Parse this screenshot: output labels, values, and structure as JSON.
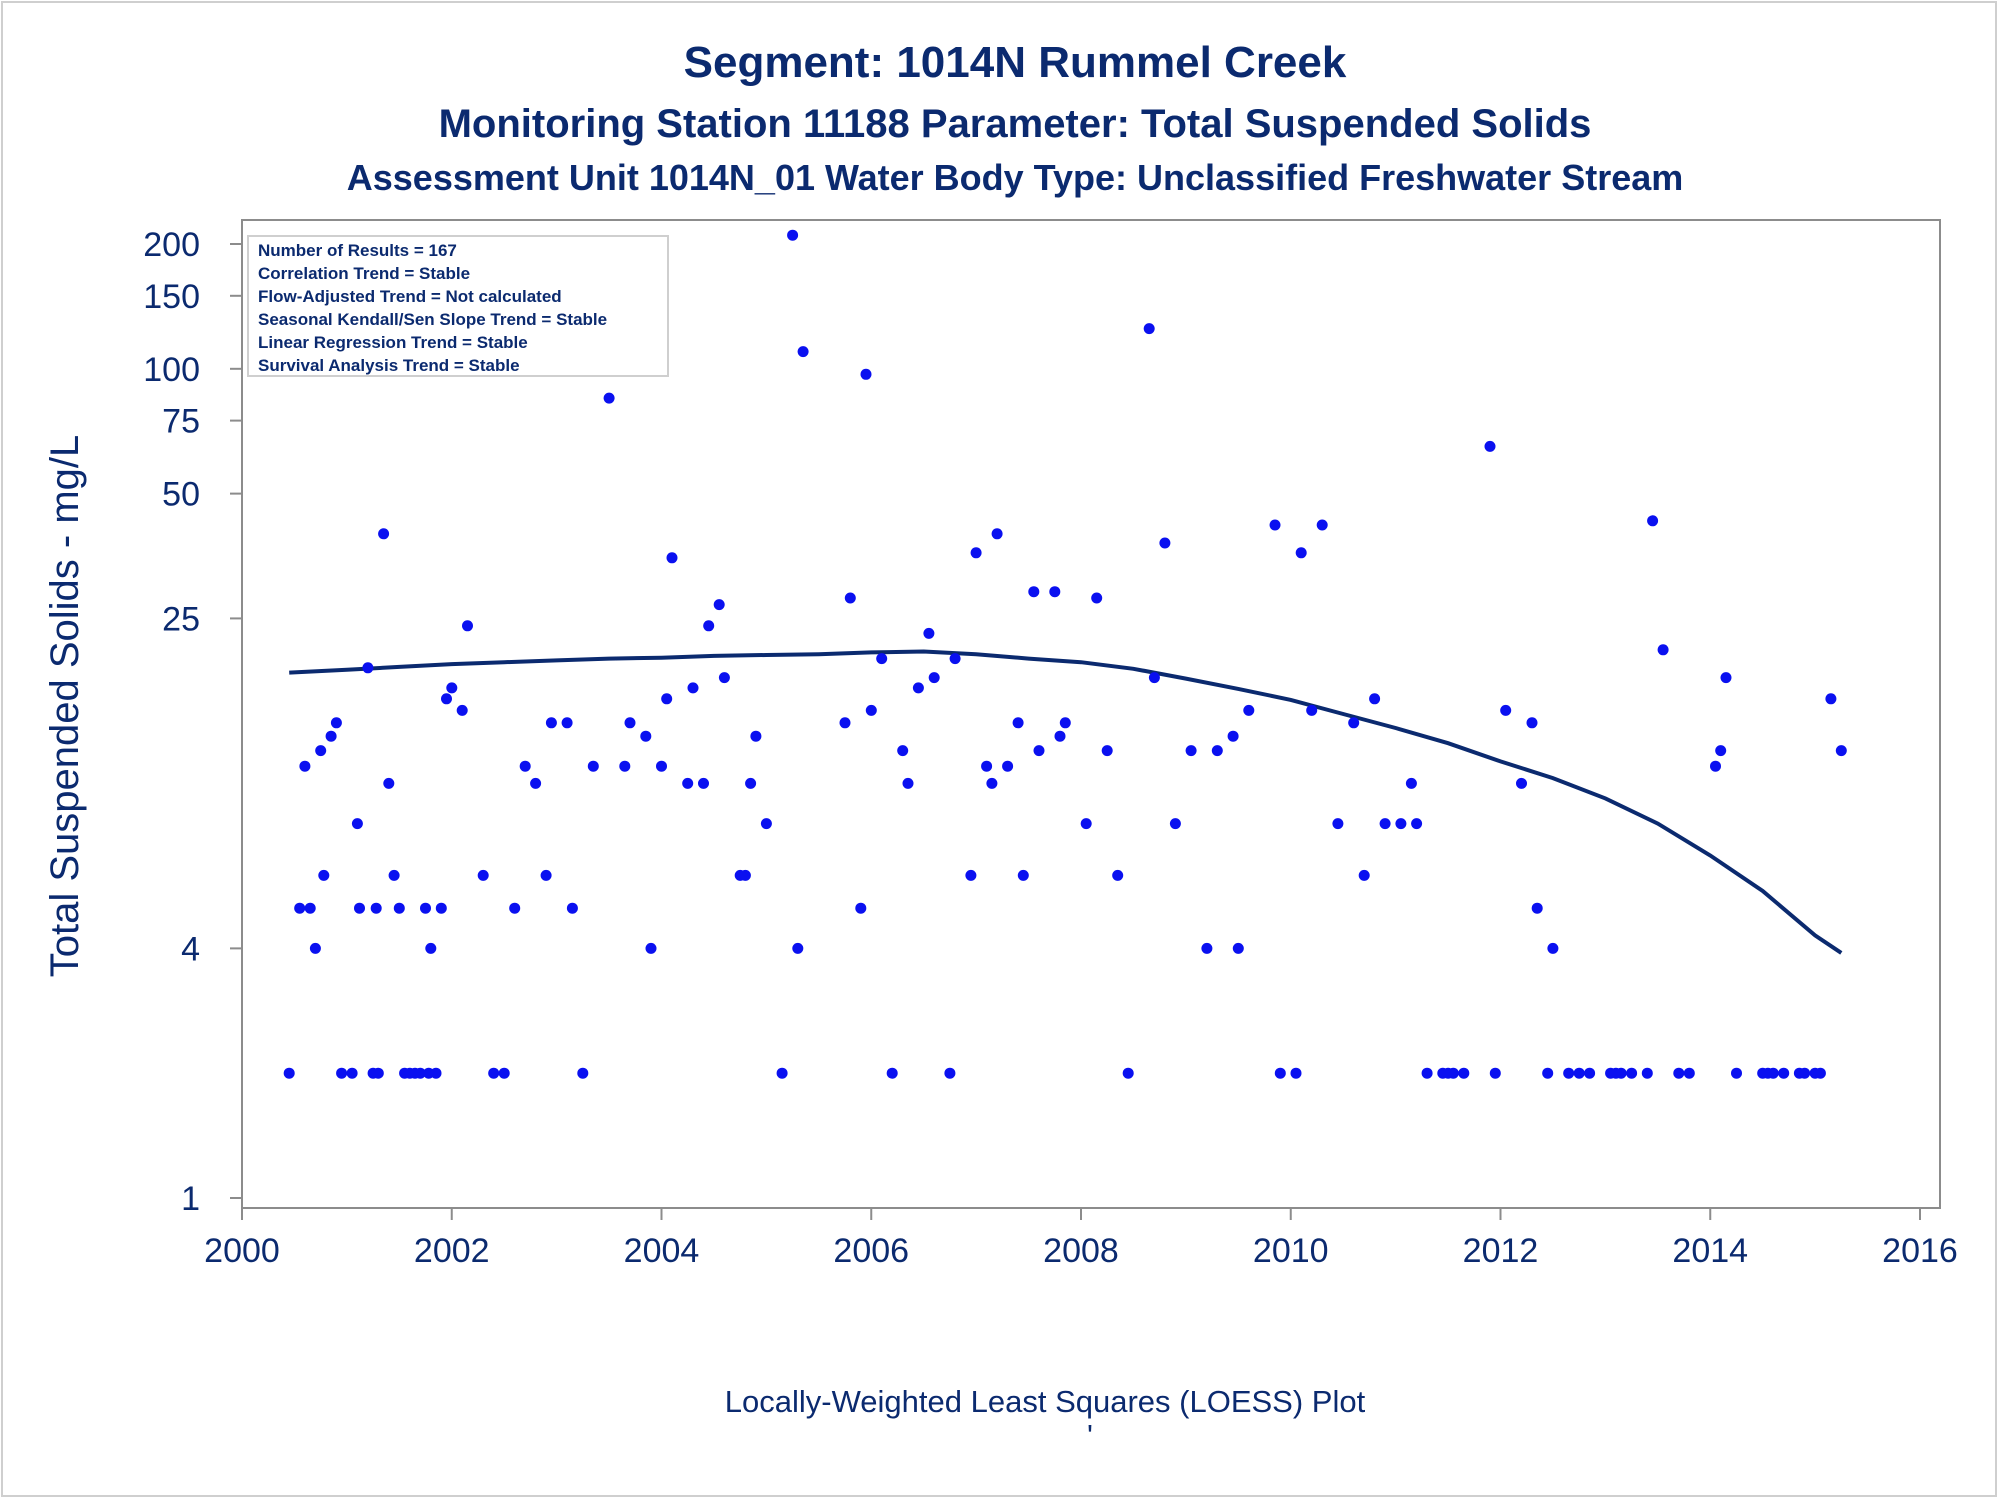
{
  "titles": {
    "line1": "Segment: 1014N  Rummel Creek",
    "line2": "Monitoring Station 11188 Parameter: Total Suspended Solids",
    "line3": "Assessment Unit 1014N_01   Water Body Type: Unclassified Freshwater Stream"
  },
  "legend": {
    "lines": [
      "Number of Results = 167",
      "Correlation Trend = Stable",
      "Flow-Adjusted Trend = Not calculated",
      "Seasonal Kendall/Sen Slope Trend = Stable",
      "Linear Regression Trend = Stable",
      "Survival Analysis Trend = Stable"
    ]
  },
  "footnote": "Locally-Weighted Least Squares (LOESS) Plot",
  "footnote_mark": "'",
  "colors": {
    "points": "#0a10f0",
    "loess": "#0b2a6f",
    "text": "#0b2a6f",
    "axis": "#8c8c8c"
  },
  "chart_data": {
    "type": "scatter",
    "xlabel": "",
    "ylabel": "Total Suspended Solids - mg/L",
    "xlim": [
      2000,
      2016
    ],
    "ylim": [
      1,
      230
    ],
    "yscale": "log",
    "xticks": [
      2000,
      2002,
      2004,
      2006,
      2008,
      2010,
      2012,
      2014,
      2016
    ],
    "yticks": [
      1,
      4,
      25,
      50,
      75,
      100,
      150,
      200
    ],
    "grid": false,
    "legend_position": "top-left",
    "points": [
      [
        2000.45,
        2
      ],
      [
        2000.5,
        200
      ],
      [
        2000.55,
        5
      ],
      [
        2000.6,
        11
      ],
      [
        2000.65,
        5
      ],
      [
        2000.7,
        4
      ],
      [
        2000.75,
        12
      ],
      [
        2000.78,
        6
      ],
      [
        2000.85,
        13
      ],
      [
        2000.9,
        14
      ],
      [
        2000.95,
        2
      ],
      [
        2001.05,
        2
      ],
      [
        2001.1,
        8
      ],
      [
        2001.12,
        5
      ],
      [
        2001.2,
        19
      ],
      [
        2001.25,
        2
      ],
      [
        2001.28,
        5
      ],
      [
        2001.3,
        2
      ],
      [
        2001.35,
        40
      ],
      [
        2001.4,
        10
      ],
      [
        2001.45,
        6
      ],
      [
        2001.5,
        5
      ],
      [
        2001.55,
        2
      ],
      [
        2001.6,
        2
      ],
      [
        2001.65,
        2
      ],
      [
        2001.7,
        2
      ],
      [
        2001.75,
        5
      ],
      [
        2001.78,
        2
      ],
      [
        2001.8,
        4
      ],
      [
        2001.85,
        2
      ],
      [
        2001.9,
        5
      ],
      [
        2001.95,
        16
      ],
      [
        2002.0,
        17
      ],
      [
        2002.1,
        15
      ],
      [
        2002.15,
        24
      ],
      [
        2002.3,
        6
      ],
      [
        2002.4,
        2
      ],
      [
        2002.5,
        2
      ],
      [
        2002.6,
        5
      ],
      [
        2002.65,
        140
      ],
      [
        2002.7,
        11
      ],
      [
        2002.8,
        10
      ],
      [
        2002.9,
        6
      ],
      [
        2002.95,
        14
      ],
      [
        2003.1,
        14
      ],
      [
        2003.15,
        5
      ],
      [
        2003.25,
        2
      ],
      [
        2003.35,
        11
      ],
      [
        2003.5,
        85
      ],
      [
        2003.55,
        145
      ],
      [
        2003.65,
        11
      ],
      [
        2003.7,
        14
      ],
      [
        2003.85,
        13
      ],
      [
        2003.9,
        4
      ],
      [
        2004.0,
        11
      ],
      [
        2004.05,
        16
      ],
      [
        2004.1,
        35
      ],
      [
        2004.25,
        10
      ],
      [
        2004.3,
        17
      ],
      [
        2004.4,
        10
      ],
      [
        2004.45,
        24
      ],
      [
        2004.55,
        27
      ],
      [
        2004.6,
        18
      ],
      [
        2004.75,
        6
      ],
      [
        2004.8,
        6
      ],
      [
        2004.85,
        10
      ],
      [
        2004.9,
        13
      ],
      [
        2005.0,
        8
      ],
      [
        2005.15,
        2
      ],
      [
        2005.25,
        210
      ],
      [
        2005.3,
        4
      ],
      [
        2005.35,
        110
      ],
      [
        2005.75,
        14
      ],
      [
        2005.8,
        28
      ],
      [
        2005.9,
        5
      ],
      [
        2005.95,
        97
      ],
      [
        2006.0,
        15
      ],
      [
        2006.1,
        20
      ],
      [
        2006.2,
        2
      ],
      [
        2006.3,
        12
      ],
      [
        2006.35,
        10
      ],
      [
        2006.45,
        17
      ],
      [
        2006.55,
        23
      ],
      [
        2006.6,
        18
      ],
      [
        2006.75,
        2
      ],
      [
        2006.8,
        20
      ],
      [
        2006.95,
        6
      ],
      [
        2007.0,
        36
      ],
      [
        2007.1,
        11
      ],
      [
        2007.15,
        10
      ],
      [
        2007.2,
        40
      ],
      [
        2007.3,
        11
      ],
      [
        2007.4,
        14
      ],
      [
        2007.45,
        6
      ],
      [
        2007.55,
        29
      ],
      [
        2007.6,
        12
      ],
      [
        2007.75,
        29
      ],
      [
        2007.8,
        13
      ],
      [
        2007.85,
        14
      ],
      [
        2008.05,
        8
      ],
      [
        2008.15,
        28
      ],
      [
        2008.25,
        12
      ],
      [
        2008.35,
        6
      ],
      [
        2008.45,
        2
      ],
      [
        2008.65,
        125
      ],
      [
        2008.7,
        18
      ],
      [
        2008.8,
        38
      ],
      [
        2008.9,
        8
      ],
      [
        2009.05,
        12
      ],
      [
        2009.2,
        4
      ],
      [
        2009.3,
        12
      ],
      [
        2009.45,
        13
      ],
      [
        2009.5,
        4
      ],
      [
        2009.6,
        15
      ],
      [
        2009.85,
        42
      ],
      [
        2009.9,
        2
      ],
      [
        2010.05,
        2
      ],
      [
        2010.1,
        36
      ],
      [
        2010.2,
        15
      ],
      [
        2010.3,
        42
      ],
      [
        2010.45,
        8
      ],
      [
        2010.6,
        14
      ],
      [
        2010.7,
        6
      ],
      [
        2010.8,
        16
      ],
      [
        2010.9,
        8
      ],
      [
        2011.05,
        8
      ],
      [
        2011.15,
        10
      ],
      [
        2011.2,
        8
      ],
      [
        2011.3,
        2
      ],
      [
        2011.45,
        2
      ],
      [
        2011.5,
        2
      ],
      [
        2011.55,
        2
      ],
      [
        2011.65,
        2
      ],
      [
        2011.9,
        65
      ],
      [
        2011.95,
        2
      ],
      [
        2012.05,
        15
      ],
      [
        2012.2,
        10
      ],
      [
        2012.3,
        14
      ],
      [
        2012.35,
        5
      ],
      [
        2012.45,
        2
      ],
      [
        2012.5,
        4
      ],
      [
        2012.65,
        2
      ],
      [
        2012.75,
        2
      ],
      [
        2012.85,
        2
      ],
      [
        2013.05,
        2
      ],
      [
        2013.1,
        2
      ],
      [
        2013.15,
        2
      ],
      [
        2013.25,
        2
      ],
      [
        2013.4,
        2
      ],
      [
        2013.45,
        43
      ],
      [
        2013.55,
        21
      ],
      [
        2013.7,
        2
      ],
      [
        2013.8,
        2
      ],
      [
        2014.05,
        11
      ],
      [
        2014.1,
        12
      ],
      [
        2014.15,
        18
      ],
      [
        2014.25,
        2
      ],
      [
        2014.5,
        2
      ],
      [
        2014.55,
        2
      ],
      [
        2014.6,
        2
      ],
      [
        2014.7,
        2
      ],
      [
        2014.85,
        2
      ],
      [
        2014.9,
        2
      ],
      [
        2015.0,
        2
      ],
      [
        2015.05,
        2
      ],
      [
        2015.15,
        16
      ],
      [
        2015.25,
        12
      ]
    ],
    "loess": [
      [
        2000.45,
        18.5
      ],
      [
        2001.0,
        18.8
      ],
      [
        2001.5,
        19.1
      ],
      [
        2002.0,
        19.4
      ],
      [
        2002.5,
        19.6
      ],
      [
        2003.0,
        19.8
      ],
      [
        2003.5,
        20.0
      ],
      [
        2004.0,
        20.1
      ],
      [
        2004.5,
        20.3
      ],
      [
        2005.0,
        20.4
      ],
      [
        2005.5,
        20.5
      ],
      [
        2006.0,
        20.7
      ],
      [
        2006.5,
        20.8
      ],
      [
        2007.0,
        20.5
      ],
      [
        2007.5,
        20.0
      ],
      [
        2008.0,
        19.6
      ],
      [
        2008.5,
        18.9
      ],
      [
        2009.0,
        17.9
      ],
      [
        2009.5,
        16.9
      ],
      [
        2010.0,
        15.9
      ],
      [
        2010.5,
        14.7
      ],
      [
        2011.0,
        13.6
      ],
      [
        2011.5,
        12.5
      ],
      [
        2012.0,
        11.3
      ],
      [
        2012.5,
        10.3
      ],
      [
        2013.0,
        9.2
      ],
      [
        2013.5,
        8.0
      ],
      [
        2014.0,
        6.7
      ],
      [
        2014.5,
        5.5
      ],
      [
        2015.0,
        4.3
      ],
      [
        2015.25,
        3.9
      ]
    ]
  }
}
